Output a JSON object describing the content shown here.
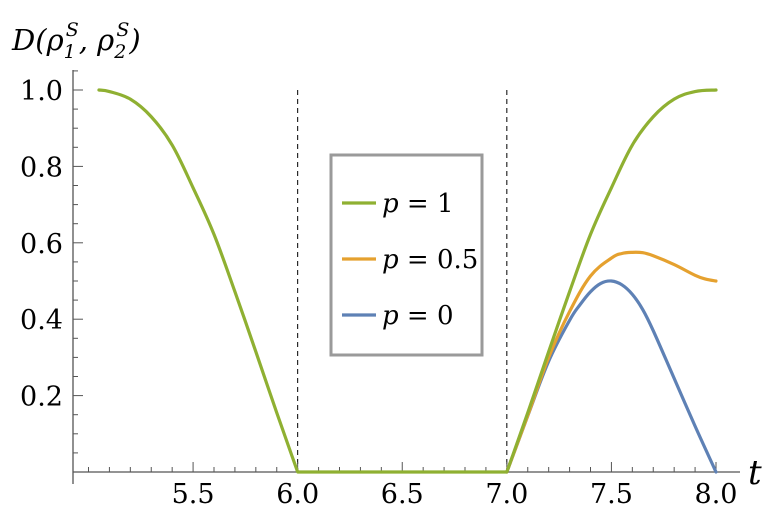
{
  "chart_data": {
    "type": "line",
    "ylabel": "D(ρ₁ˢ, ρ₂ˢ)",
    "xlabel": "t",
    "xlim": [
      5.0,
      8.0
    ],
    "ylim": [
      0.0,
      1.05
    ],
    "x_ticks": [
      "5.5",
      "6.0",
      "6.5",
      "7.0",
      "7.5",
      "8.0"
    ],
    "y_ticks": [
      "0.2",
      "0.4",
      "0.6",
      "0.8",
      "1.0"
    ],
    "vlines": [
      6.0,
      7.0
    ],
    "legend_position": "center",
    "grid": false,
    "series": [
      {
        "name": "p = 1",
        "color": "#8fb032",
        "x": [
          5.05,
          5.1,
          5.2,
          5.3,
          5.4,
          5.5,
          5.6,
          5.7,
          5.8,
          5.9,
          6.0,
          6.5,
          7.0,
          7.1,
          7.2,
          7.3,
          7.4,
          7.5,
          7.6,
          7.7,
          7.8,
          7.9,
          8.0
        ],
        "values": [
          1.0,
          0.996,
          0.976,
          0.93,
          0.856,
          0.744,
          0.622,
          0.472,
          0.315,
          0.155,
          0.0,
          0.0,
          0.0,
          0.155,
          0.315,
          0.472,
          0.622,
          0.744,
          0.856,
          0.93,
          0.976,
          0.996,
          1.0
        ]
      },
      {
        "name": "p = 0.5",
        "color": "#e5a12f",
        "x": [
          7.0,
          7.1,
          7.2,
          7.3,
          7.4,
          7.5,
          7.55,
          7.6,
          7.65,
          7.7,
          7.8,
          7.9,
          7.95,
          8.0
        ],
        "values": [
          0.0,
          0.148,
          0.3,
          0.42,
          0.513,
          0.56,
          0.572,
          0.575,
          0.574,
          0.566,
          0.543,
          0.515,
          0.505,
          0.5
        ]
      },
      {
        "name": "p = 0",
        "color": "#5e81b5",
        "x": [
          7.0,
          7.1,
          7.2,
          7.3,
          7.35,
          7.4,
          7.45,
          7.5,
          7.55,
          7.6,
          7.65,
          7.7,
          7.8,
          7.9,
          8.0
        ],
        "values": [
          0.0,
          0.147,
          0.29,
          0.397,
          0.438,
          0.472,
          0.494,
          0.5,
          0.49,
          0.465,
          0.425,
          0.37,
          0.245,
          0.12,
          0.0
        ]
      }
    ]
  }
}
